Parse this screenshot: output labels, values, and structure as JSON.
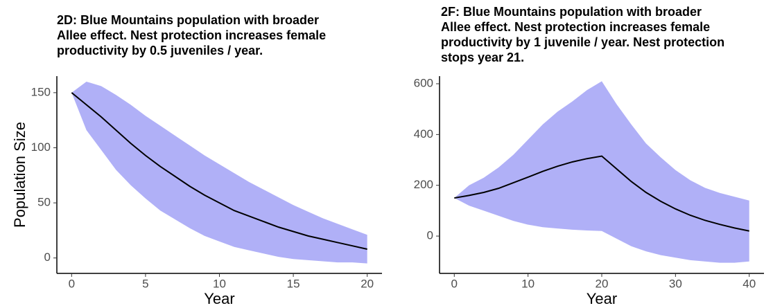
{
  "chart_data": [
    {
      "type": "line",
      "title": [
        "2D: Blue Mountains population with broader",
        " Allee effect. Nest protection increases female",
        " productivity by 0.5 juveniles / year."
      ],
      "xlabel": "Year",
      "ylabel": "Population Size",
      "x": [
        0,
        1,
        2,
        3,
        4,
        5,
        6,
        7,
        8,
        9,
        10,
        11,
        12,
        13,
        14,
        15,
        16,
        17,
        18,
        19,
        20
      ],
      "values": [
        150,
        139,
        128,
        116,
        104,
        93,
        83,
        74,
        65,
        57,
        50,
        43,
        38,
        33,
        28,
        24,
        20,
        17,
        14,
        11,
        8
      ],
      "upper": [
        150,
        160,
        156,
        148,
        139,
        129,
        120,
        111,
        102,
        93,
        85,
        77,
        69,
        62,
        55,
        48,
        42,
        36,
        31,
        26,
        21
      ],
      "lower": [
        150,
        116,
        98,
        80,
        66,
        54,
        43,
        35,
        27,
        20,
        15,
        10,
        7,
        4,
        1,
        -1,
        -2,
        -3,
        -4,
        -4,
        -5
      ],
      "color": "#000000",
      "band_color": "#b0b0f7",
      "xlim": [
        -1,
        21
      ],
      "ylim": [
        -14,
        165
      ],
      "xticks": [
        0,
        5,
        10,
        15,
        20
      ],
      "yticks": [
        0,
        50,
        100,
        150
      ],
      "grid": false
    },
    {
      "type": "line",
      "title": [
        "2F: Blue Mountains population with broader",
        " Allee effect. Nest protection increases female",
        " productivity by 1 juvenile / year. Nest protection",
        " stops year 21."
      ],
      "xlabel": "Year",
      "x": [
        0,
        2,
        4,
        6,
        8,
        10,
        12,
        14,
        16,
        18,
        20,
        22,
        24,
        26,
        28,
        30,
        32,
        34,
        36,
        38,
        40
      ],
      "values": [
        150,
        160,
        172,
        188,
        210,
        232,
        255,
        275,
        292,
        305,
        315,
        265,
        215,
        172,
        137,
        107,
        82,
        62,
        46,
        32,
        20
      ],
      "upper": [
        150,
        200,
        230,
        270,
        320,
        380,
        440,
        490,
        530,
        575,
        610,
        520,
        440,
        365,
        310,
        260,
        220,
        190,
        170,
        155,
        140
      ],
      "lower": [
        150,
        120,
        100,
        80,
        60,
        45,
        35,
        30,
        25,
        22,
        20,
        -10,
        -40,
        -60,
        -75,
        -85,
        -95,
        -100,
        -105,
        -105,
        -100
      ],
      "color": "#000000",
      "band_color": "#b0b0f7",
      "xlim": [
        -2,
        42
      ],
      "ylim": [
        -147,
        630
      ],
      "xticks": [
        0,
        10,
        20,
        30,
        40
      ],
      "yticks": [
        0,
        200,
        400,
        600
      ],
      "grid": false
    }
  ]
}
